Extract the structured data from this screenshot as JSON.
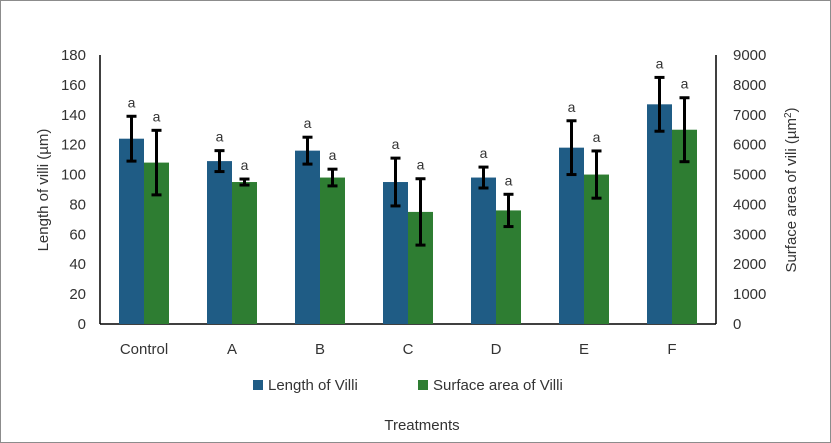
{
  "chart_data": {
    "type": "bar",
    "categories": [
      "Control",
      "A",
      "B",
      "C",
      "D",
      "E",
      "F"
    ],
    "xlabel": "Treatments",
    "ylabel": "Length of villi (µm)",
    "y2label_base": "Surface area of vili (µm",
    "y2label_sup": "2",
    "y2label_end": ")",
    "ylim": [
      0,
      180
    ],
    "y_ticks": [
      0,
      20,
      40,
      60,
      80,
      100,
      120,
      140,
      160,
      180
    ],
    "y2lim": [
      0,
      9000
    ],
    "y2_ticks": [
      0,
      1000,
      2000,
      3000,
      4000,
      5000,
      6000,
      7000,
      8000,
      9000
    ],
    "series": [
      {
        "name": "Length of Villi",
        "axis": "left",
        "color": "#1f5c85",
        "values": [
          124,
          109,
          116,
          95,
          98,
          118,
          147
        ],
        "errors": [
          15,
          7,
          9,
          16,
          7,
          18,
          18
        ],
        "labels": [
          "a",
          "a",
          "a",
          "a",
          "a",
          "a",
          "a"
        ]
      },
      {
        "name": "Surface area of Villi",
        "axis": "right",
        "color": "#2e7d32",
        "values": [
          5400,
          4750,
          4900,
          3750,
          3800,
          5000,
          6500
        ],
        "errors": [
          1080,
          100,
          280,
          1110,
          540,
          790,
          1070
        ],
        "labels": [
          "a",
          "a",
          "a",
          "a",
          "a",
          "a",
          "a"
        ]
      }
    ],
    "grid": false,
    "legend_position": "bottom"
  }
}
